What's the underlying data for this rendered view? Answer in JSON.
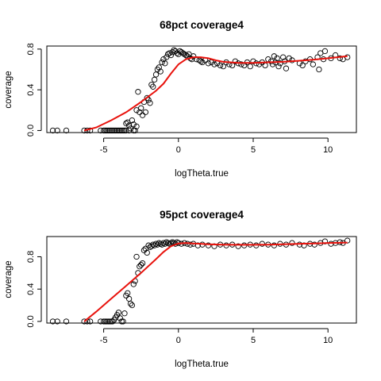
{
  "chart_data": [
    {
      "type": "scatter",
      "title": "68pct coverage4",
      "xlabel": "logTheta.true",
      "ylabel": "coverage",
      "xlim": [
        -8.8,
        11.9
      ],
      "ylim": [
        -0.02,
        0.83
      ],
      "xticks": [
        -5,
        0,
        5,
        10
      ],
      "yticks": [
        0.0,
        0.4,
        0.8
      ],
      "xtick_labels": [
        "-5",
        "0",
        "5",
        "10"
      ],
      "ytick_labels": [
        "0.0",
        "0.4",
        "0.8"
      ],
      "grid": false,
      "legend": "none",
      "colors": {
        "points": "#000000",
        "smooth": "#e8120c"
      },
      "series": [
        {
          "kind": "points",
          "x": [
            -8.4,
            -8.1,
            -7.5,
            -6.3,
            -6.1,
            -5.9,
            -5.2,
            -5.0,
            -4.9,
            -4.8,
            -4.7,
            -4.6,
            -4.5,
            -4.4,
            -4.3,
            -4.2,
            -4.1,
            -4.0,
            -3.9,
            -3.8,
            -3.7,
            -3.6,
            -3.5,
            -3.5,
            -3.4,
            -3.3,
            -3.3,
            -3.2,
            -3.1,
            -3.0,
            -3.0,
            -2.9,
            -2.8,
            -2.8,
            -2.7,
            -2.6,
            -2.5,
            -2.4,
            -2.3,
            -2.2,
            -2.1,
            -2.0,
            -1.9,
            -1.8,
            -1.7,
            -1.6,
            -1.5,
            -1.4,
            -1.3,
            -1.2,
            -1.1,
            -1.0,
            -0.9,
            -0.8,
            -0.7,
            -0.6,
            -0.5,
            -0.4,
            -0.3,
            -0.2,
            -0.1,
            0.0,
            0.1,
            0.2,
            0.3,
            0.4,
            0.5,
            0.6,
            0.7,
            0.8,
            0.9,
            1.0,
            1.2,
            1.4,
            1.5,
            1.6,
            1.8,
            2.0,
            2.2,
            2.4,
            2.6,
            2.8,
            3.0,
            3.2,
            3.4,
            3.6,
            3.8,
            4.0,
            4.2,
            4.4,
            4.6,
            4.8,
            5.0,
            5.2,
            5.4,
            5.6,
            5.8,
            6.0,
            6.2,
            6.3,
            6.4,
            6.5,
            6.6,
            6.7,
            6.8,
            7.0,
            7.1,
            7.2,
            7.4,
            7.6,
            8.1,
            8.3,
            8.5,
            8.8,
            9.0,
            9.3,
            9.4,
            9.5,
            9.7,
            9.8,
            10.2,
            10.5,
            10.8,
            11.0,
            11.3
          ],
          "y": [
            0.0,
            0.0,
            0.0,
            0.0,
            0.0,
            0.0,
            0.0,
            0.0,
            0.0,
            0.0,
            0.0,
            0.0,
            0.0,
            0.0,
            0.0,
            0.0,
            0.0,
            0.0,
            0.0,
            0.0,
            0.0,
            0.0,
            0.07,
            0.0,
            0.08,
            0.0,
            0.05,
            0.02,
            0.1,
            0.0,
            0.06,
            0.0,
            0.04,
            0.2,
            0.38,
            0.18,
            0.22,
            0.15,
            0.28,
            0.18,
            0.32,
            0.3,
            0.27,
            0.45,
            0.43,
            0.5,
            0.55,
            0.6,
            0.62,
            0.58,
            0.67,
            0.7,
            0.66,
            0.72,
            0.75,
            0.76,
            0.74,
            0.77,
            0.79,
            0.78,
            0.76,
            0.75,
            0.78,
            0.77,
            0.76,
            0.75,
            0.74,
            0.73,
            0.75,
            0.71,
            0.7,
            0.73,
            0.7,
            0.69,
            0.68,
            0.67,
            0.69,
            0.66,
            0.67,
            0.65,
            0.66,
            0.64,
            0.63,
            0.67,
            0.65,
            0.64,
            0.68,
            0.66,
            0.65,
            0.64,
            0.67,
            0.63,
            0.68,
            0.66,
            0.65,
            0.67,
            0.64,
            0.7,
            0.68,
            0.65,
            0.73,
            0.67,
            0.71,
            0.63,
            0.66,
            0.72,
            0.68,
            0.61,
            0.71,
            0.69,
            0.66,
            0.64,
            0.68,
            0.7,
            0.65,
            0.72,
            0.6,
            0.76,
            0.7,
            0.78,
            0.71,
            0.74,
            0.71,
            0.7,
            0.72
          ]
        },
        {
          "kind": "smooth",
          "x": [
            -6.3,
            -5.5,
            -4.5,
            -3.5,
            -2.5,
            -1.5,
            -1.0,
            -0.5,
            0.0,
            0.5,
            1.0,
            1.5,
            2.0,
            2.5,
            3.0,
            4.0,
            5.0,
            6.0,
            7.0,
            8.0,
            9.0,
            10.0,
            11.3
          ],
          "y": [
            0.0,
            0.03,
            0.1,
            0.18,
            0.28,
            0.39,
            0.46,
            0.56,
            0.65,
            0.7,
            0.72,
            0.72,
            0.71,
            0.69,
            0.675,
            0.665,
            0.665,
            0.67,
            0.675,
            0.685,
            0.695,
            0.71,
            0.73
          ]
        }
      ]
    },
    {
      "type": "scatter",
      "title": "95pct coverage4",
      "xlabel": "logTheta.true",
      "ylabel": "coverage",
      "xlim": [
        -8.8,
        11.9
      ],
      "ylim": [
        -0.02,
        1.05
      ],
      "xticks": [
        -5,
        0,
        5,
        10
      ],
      "yticks": [
        0.0,
        0.4,
        0.8
      ],
      "xtick_labels": [
        "-5",
        "0",
        "5",
        "10"
      ],
      "ytick_labels": [
        "0.0",
        "0.4",
        "0.8"
      ],
      "grid": false,
      "legend": "none",
      "colors": {
        "points": "#000000",
        "smooth": "#e8120c"
      },
      "series": [
        {
          "kind": "points",
          "x": [
            -8.4,
            -8.1,
            -7.5,
            -6.3,
            -6.1,
            -5.9,
            -5.2,
            -5.0,
            -4.9,
            -4.8,
            -4.7,
            -4.6,
            -4.5,
            -4.4,
            -4.3,
            -4.2,
            -4.1,
            -4.0,
            -3.9,
            -3.8,
            -3.7,
            -3.6,
            -3.5,
            -3.4,
            -3.3,
            -3.2,
            -3.1,
            -3.0,
            -2.9,
            -2.8,
            -2.7,
            -2.6,
            -2.5,
            -2.4,
            -2.3,
            -2.2,
            -2.1,
            -2.0,
            -1.9,
            -1.8,
            -1.7,
            -1.6,
            -1.5,
            -1.4,
            -1.3,
            -1.2,
            -1.1,
            -1.0,
            -0.9,
            -0.8,
            -0.7,
            -0.6,
            -0.5,
            -0.4,
            -0.3,
            -0.2,
            -0.1,
            0.0,
            0.2,
            0.4,
            0.6,
            0.8,
            1.0,
            1.3,
            1.6,
            2.0,
            2.4,
            2.8,
            3.2,
            3.6,
            4.0,
            4.4,
            4.8,
            5.2,
            5.6,
            6.0,
            6.4,
            6.8,
            7.2,
            7.6,
            8.1,
            8.4,
            8.8,
            9.1,
            9.5,
            9.8,
            10.2,
            10.5,
            10.8,
            11.0,
            11.3
          ],
          "y": [
            0.0,
            0.0,
            0.0,
            0.0,
            0.0,
            0.0,
            0.0,
            0.0,
            0.0,
            0.0,
            0.0,
            0.0,
            0.0,
            0.0,
            0.02,
            0.05,
            0.08,
            0.11,
            0.04,
            0.0,
            0.0,
            0.1,
            0.32,
            0.35,
            0.28,
            0.22,
            0.2,
            0.46,
            0.5,
            0.8,
            0.6,
            0.68,
            0.7,
            0.72,
            0.88,
            0.9,
            0.85,
            0.94,
            0.92,
            0.93,
            0.95,
            0.94,
            0.96,
            0.95,
            0.97,
            0.96,
            0.95,
            0.97,
            0.96,
            0.98,
            0.97,
            0.96,
            0.97,
            0.98,
            0.97,
            0.96,
            0.98,
            0.97,
            0.96,
            0.97,
            0.96,
            0.95,
            0.96,
            0.94,
            0.95,
            0.94,
            0.93,
            0.95,
            0.94,
            0.95,
            0.93,
            0.94,
            0.95,
            0.94,
            0.96,
            0.95,
            0.94,
            0.96,
            0.95,
            0.97,
            0.95,
            0.94,
            0.96,
            0.95,
            0.97,
            0.99,
            0.96,
            0.97,
            0.98,
            0.97,
            1.0
          ]
        },
        {
          "kind": "smooth",
          "x": [
            -6.3,
            -5.5,
            -4.5,
            -3.5,
            -2.5,
            -1.5,
            -1.0,
            -0.5,
            0.0,
            0.5,
            1.0,
            2.0,
            3.0,
            4.0,
            5.0,
            6.0,
            7.0,
            8.0,
            9.0,
            10.0,
            11.3
          ],
          "y": [
            0.0,
            0.12,
            0.28,
            0.44,
            0.6,
            0.77,
            0.86,
            0.93,
            0.965,
            0.97,
            0.965,
            0.955,
            0.95,
            0.948,
            0.948,
            0.95,
            0.955,
            0.96,
            0.965,
            0.97,
            0.975
          ]
        }
      ]
    }
  ]
}
